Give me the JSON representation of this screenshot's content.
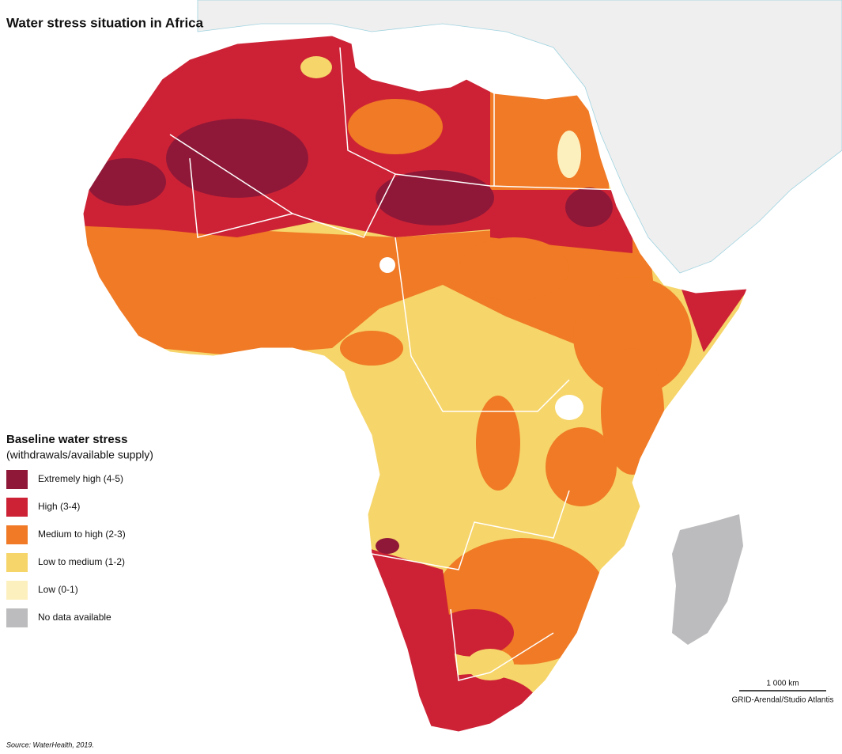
{
  "title": "Water stress situation in Africa",
  "legend": {
    "title": "Baseline water stress",
    "subtitle": "(withdrawals/available supply)",
    "items": [
      {
        "label": "Extremely high (4-5)",
        "color": "#8f1838"
      },
      {
        "label": "High (3-4)",
        "color": "#cd2235"
      },
      {
        "label": "Medium to high (2-3)",
        "color": "#f07a25"
      },
      {
        "label": "Low to medium (1-2)",
        "color": "#f6d56a"
      },
      {
        "label": "Low (0-1)",
        "color": "#fdf0bf"
      },
      {
        "label": "No data available",
        "color": "#bcbcbe"
      }
    ]
  },
  "scale_bar": "1 000 km",
  "credit": "GRID-Arendal/Studio Atlantis",
  "source": "Source: WaterHealth, 2019."
}
